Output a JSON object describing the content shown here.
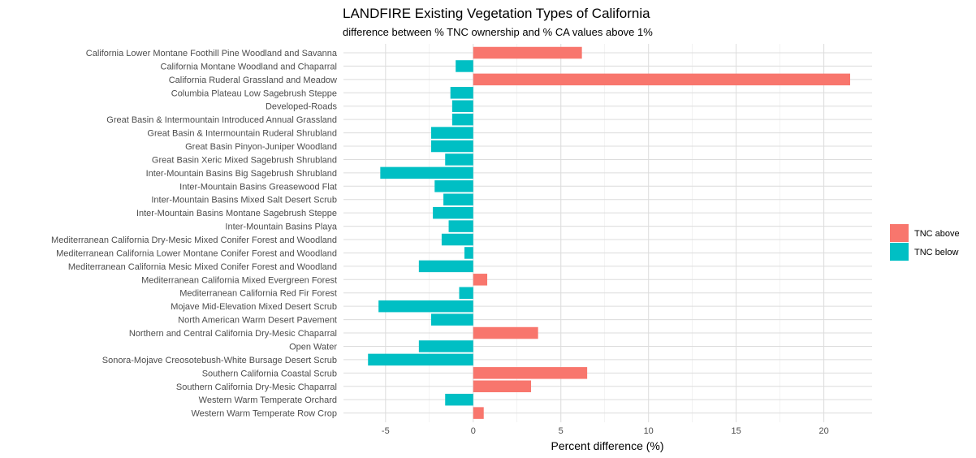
{
  "chart_data": {
    "type": "bar",
    "orientation": "horizontal",
    "title": "LANDFIRE Existing Vegetation Types of California",
    "subtitle": "difference between % TNC ownership and % CA values above 1%",
    "xlabel": "Percent difference (%)",
    "ylabel": "",
    "xlim": [
      -6.1,
      21.5
    ],
    "x_ticks": [
      -5,
      0,
      5,
      10,
      15,
      20
    ],
    "grid": true,
    "legend_position": "right",
    "legend": [
      {
        "label": "TNC above",
        "color": "#f8766d"
      },
      {
        "label": "TNC below",
        "color": "#00bfc4"
      }
    ],
    "categories": [
      "California Lower Montane Foothill Pine Woodland and Savanna",
      "California Montane Woodland and Chaparral",
      "California Ruderal Grassland and Meadow",
      "Columbia Plateau Low Sagebrush Steppe",
      "Developed-Roads",
      "Great Basin & Intermountain Introduced Annual Grassland",
      "Great Basin & Intermountain Ruderal Shrubland",
      "Great Basin Pinyon-Juniper Woodland",
      "Great Basin Xeric Mixed Sagebrush Shrubland",
      "Inter-Mountain Basins Big Sagebrush Shrubland",
      "Inter-Mountain Basins Greasewood Flat",
      "Inter-Mountain Basins Mixed Salt Desert Scrub",
      "Inter-Mountain Basins Montane Sagebrush Steppe",
      "Inter-Mountain Basins Playa",
      "Mediterranean California Dry-Mesic Mixed Conifer Forest and Woodland",
      "Mediterranean California Lower Montane Conifer Forest and Woodland",
      "Mediterranean California Mesic Mixed Conifer Forest and Woodland",
      "Mediterranean California Mixed Evergreen Forest",
      "Mediterranean California Red Fir Forest",
      "Mojave Mid-Elevation Mixed Desert Scrub",
      "North American Warm Desert Pavement",
      "Northern and Central California Dry-Mesic Chaparral",
      "Open Water",
      "Sonora-Mojave Creosotebush-White Bursage Desert Scrub",
      "Southern California Coastal Scrub",
      "Southern California Dry-Mesic Chaparral",
      "Western Warm Temperate Orchard",
      "Western Warm Temperate Row Crop"
    ],
    "values": [
      6.2,
      -1.0,
      21.5,
      -1.3,
      -1.2,
      -1.2,
      -2.4,
      -2.4,
      -1.6,
      -5.3,
      -2.2,
      -1.7,
      -2.3,
      -1.4,
      -1.8,
      -0.5,
      -3.1,
      0.8,
      -0.8,
      -5.4,
      -2.4,
      3.7,
      -3.1,
      -6.0,
      6.5,
      3.3,
      -1.6,
      0.6
    ],
    "groups": [
      "TNC above",
      "TNC below",
      "TNC above",
      "TNC below",
      "TNC below",
      "TNC below",
      "TNC below",
      "TNC below",
      "TNC below",
      "TNC below",
      "TNC below",
      "TNC below",
      "TNC below",
      "TNC below",
      "TNC below",
      "TNC below",
      "TNC below",
      "TNC above",
      "TNC below",
      "TNC below",
      "TNC below",
      "TNC above",
      "TNC below",
      "TNC below",
      "TNC above",
      "TNC above",
      "TNC below",
      "TNC above"
    ]
  }
}
